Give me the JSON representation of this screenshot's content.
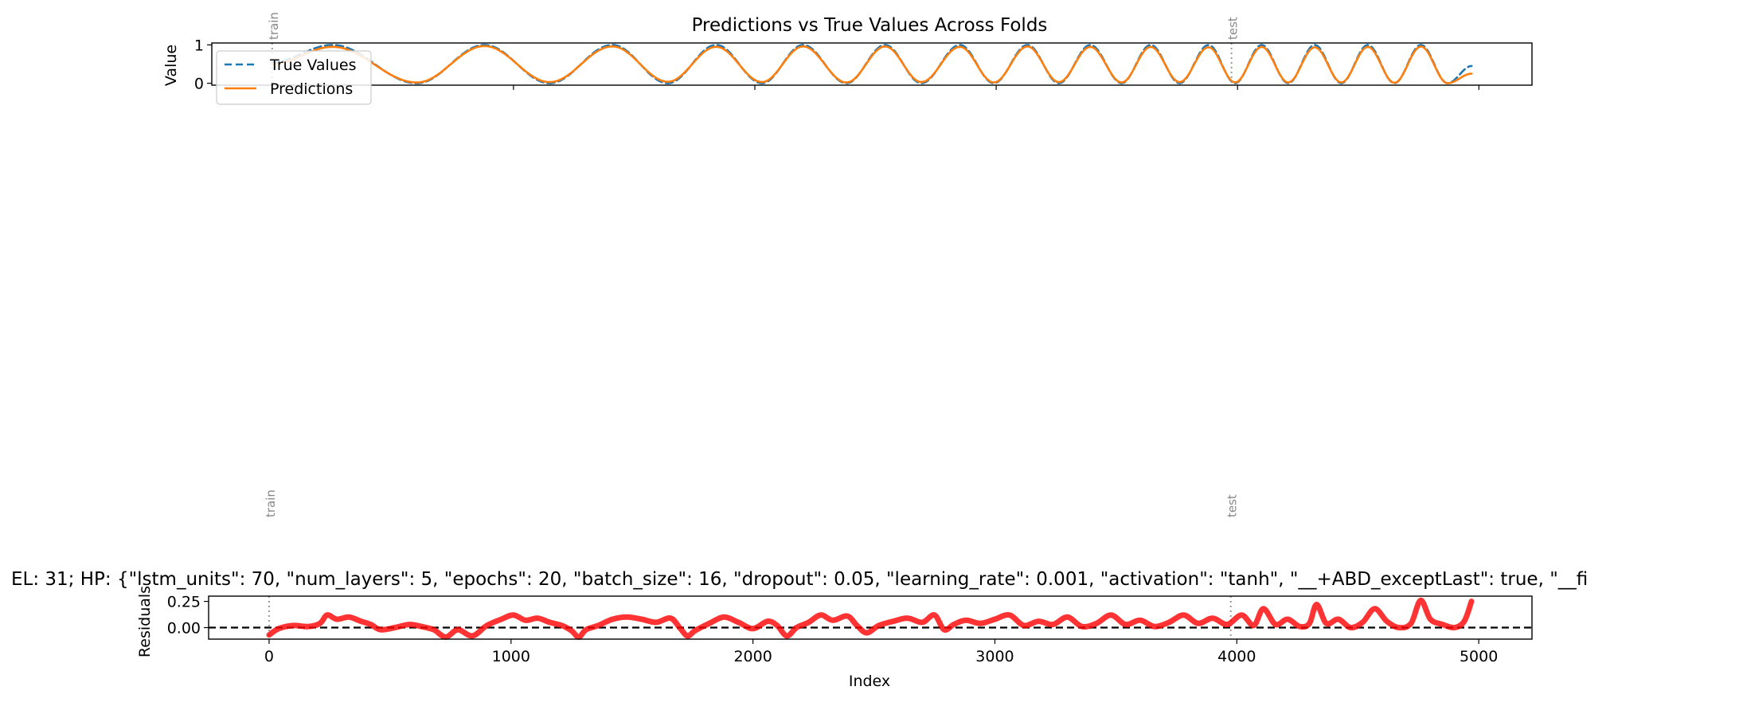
{
  "figure": {
    "background": "#ffffff",
    "marker_text": {
      "train": "train",
      "test": "test"
    }
  },
  "chart_data": [
    {
      "id": "top",
      "type": "line",
      "title": "Predictions vs True Values Across Folds",
      "xlabel": "",
      "ylabel": "Value",
      "xlim": [
        -250,
        5220
      ],
      "ylim": [
        -0.05,
        1.05
      ],
      "x_ticks": [
        0,
        1000,
        2000,
        3000,
        4000,
        5000
      ],
      "x_tick_labels_visible": false,
      "y_ticks": [
        0,
        1
      ],
      "y_tick_labels": [
        "0",
        "1"
      ],
      "legend": {
        "position": "upper-left",
        "entries": [
          "True Values",
          "Predictions"
        ]
      },
      "split_markers": [
        {
          "x": 0,
          "label": "train"
        },
        {
          "x": 3975,
          "label": "test"
        }
      ],
      "series": [
        {
          "name": "True Values",
          "style": "dashed",
          "color": "#1f77b4",
          "x": [
            0,
            250,
            600,
            880,
            1150,
            1410,
            1640,
            1840,
            2030,
            2200,
            2380,
            2540,
            2690,
            2850,
            2990,
            3130,
            3260,
            3390,
            3520,
            3640,
            3760,
            3880,
            3990,
            4100,
            4210,
            4320,
            4430,
            4540,
            4650,
            4760,
            4870,
            4970
          ],
          "y": [
            0.55,
            1.0,
            0.0,
            1.0,
            0.0,
            1.0,
            0.0,
            1.0,
            0.0,
            1.0,
            0.0,
            1.0,
            0.0,
            1.0,
            0.0,
            1.0,
            0.0,
            1.0,
            0.0,
            1.0,
            0.0,
            1.0,
            0.0,
            1.0,
            0.0,
            1.0,
            0.0,
            1.0,
            0.0,
            1.0,
            0.0,
            0.45
          ]
        },
        {
          "name": "Predictions",
          "style": "solid",
          "color": "#ff7f0e",
          "x": [
            0,
            250,
            600,
            880,
            1150,
            1410,
            1640,
            1840,
            2030,
            2200,
            2380,
            2540,
            2690,
            2850,
            2990,
            3130,
            3260,
            3390,
            3520,
            3640,
            3760,
            3880,
            3990,
            4100,
            4210,
            4320,
            4430,
            4540,
            4650,
            4760,
            4870,
            4970
          ],
          "y": [
            0.5,
            0.95,
            0.02,
            0.97,
            0.03,
            0.96,
            0.04,
            0.95,
            0.03,
            0.96,
            0.02,
            0.96,
            0.03,
            0.95,
            0.02,
            0.96,
            0.03,
            0.95,
            0.02,
            0.95,
            0.03,
            0.94,
            0.02,
            0.95,
            0.02,
            0.94,
            0.02,
            0.95,
            0.01,
            0.96,
            0.0,
            0.25
          ]
        }
      ]
    },
    {
      "id": "bottom",
      "type": "line",
      "title": "EL: 31; HP: {\"lstm_units\": 70, \"num_layers\": 5, \"epochs\": 20, \"batch_size\": 16, \"dropout\": 0.05, \"learning_rate\": 0.001, \"activation\": \"tanh\", \"__+ABD_exceptLast\": true, \"__fi",
      "xlabel": "Index",
      "ylabel": "Residuals",
      "xlim": [
        -250,
        5220
      ],
      "ylim": [
        -0.11,
        0.3
      ],
      "x_ticks": [
        0,
        1000,
        2000,
        3000,
        4000,
        5000
      ],
      "x_tick_labels": [
        "0",
        "1000",
        "2000",
        "3000",
        "4000",
        "5000"
      ],
      "y_ticks": [
        0.25,
        0.0
      ],
      "y_tick_labels": [
        "0.25",
        "0.00"
      ],
      "zero_line": {
        "y": 0,
        "style": "dashed",
        "color": "#000000"
      },
      "split_markers": [
        {
          "x": 0,
          "label": "train"
        },
        {
          "x": 3975,
          "label": "test"
        }
      ],
      "series": [
        {
          "name": "",
          "style": "solid",
          "color": "#ff0000",
          "x": [
            0,
            40,
            100,
            160,
            210,
            240,
            280,
            330,
            380,
            420,
            460,
            520,
            580,
            630,
            680,
            730,
            780,
            840,
            900,
            960,
            1010,
            1060,
            1110,
            1160,
            1210,
            1250,
            1280,
            1310,
            1360,
            1420,
            1480,
            1540,
            1600,
            1660,
            1700,
            1730,
            1760,
            1820,
            1880,
            1940,
            2000,
            2060,
            2100,
            2140,
            2180,
            2230,
            2280,
            2330,
            2390,
            2430,
            2470,
            2520,
            2580,
            2640,
            2700,
            2750,
            2790,
            2830,
            2880,
            2940,
            3000,
            3060,
            3120,
            3180,
            3240,
            3300,
            3360,
            3420,
            3480,
            3540,
            3600,
            3660,
            3720,
            3780,
            3840,
            3900,
            3960,
            4020,
            4070,
            4110,
            4160,
            4210,
            4260,
            4300,
            4330,
            4370,
            4420,
            4470,
            4520,
            4570,
            4620,
            4670,
            4720,
            4760,
            4800,
            4850,
            4900,
            4940,
            4970
          ],
          "y": [
            -0.07,
            -0.01,
            0.02,
            0.01,
            0.04,
            0.12,
            0.08,
            0.1,
            0.06,
            0.03,
            -0.02,
            0.0,
            0.03,
            0.01,
            -0.02,
            -0.09,
            -0.02,
            -0.08,
            0.02,
            0.08,
            0.12,
            0.07,
            0.09,
            0.05,
            0.02,
            -0.03,
            -0.09,
            -0.02,
            0.02,
            0.08,
            0.1,
            0.08,
            0.05,
            0.09,
            -0.01,
            -0.08,
            -0.03,
            0.04,
            0.1,
            0.05,
            -0.01,
            0.06,
            0.02,
            -0.08,
            0.0,
            0.05,
            0.12,
            0.07,
            0.11,
            0.02,
            -0.05,
            0.02,
            0.06,
            0.09,
            0.05,
            0.12,
            -0.02,
            0.03,
            0.07,
            0.04,
            0.08,
            0.12,
            0.02,
            0.06,
            0.03,
            0.1,
            0.01,
            0.04,
            0.12,
            0.03,
            0.07,
            0.01,
            0.05,
            0.12,
            0.04,
            0.09,
            0.03,
            0.12,
            0.02,
            0.18,
            0.03,
            0.08,
            0.01,
            0.04,
            0.22,
            0.04,
            0.08,
            0.0,
            0.05,
            0.18,
            0.06,
            0.0,
            0.04,
            0.26,
            0.08,
            0.03,
            0.0,
            0.06,
            0.25
          ]
        }
      ]
    }
  ]
}
